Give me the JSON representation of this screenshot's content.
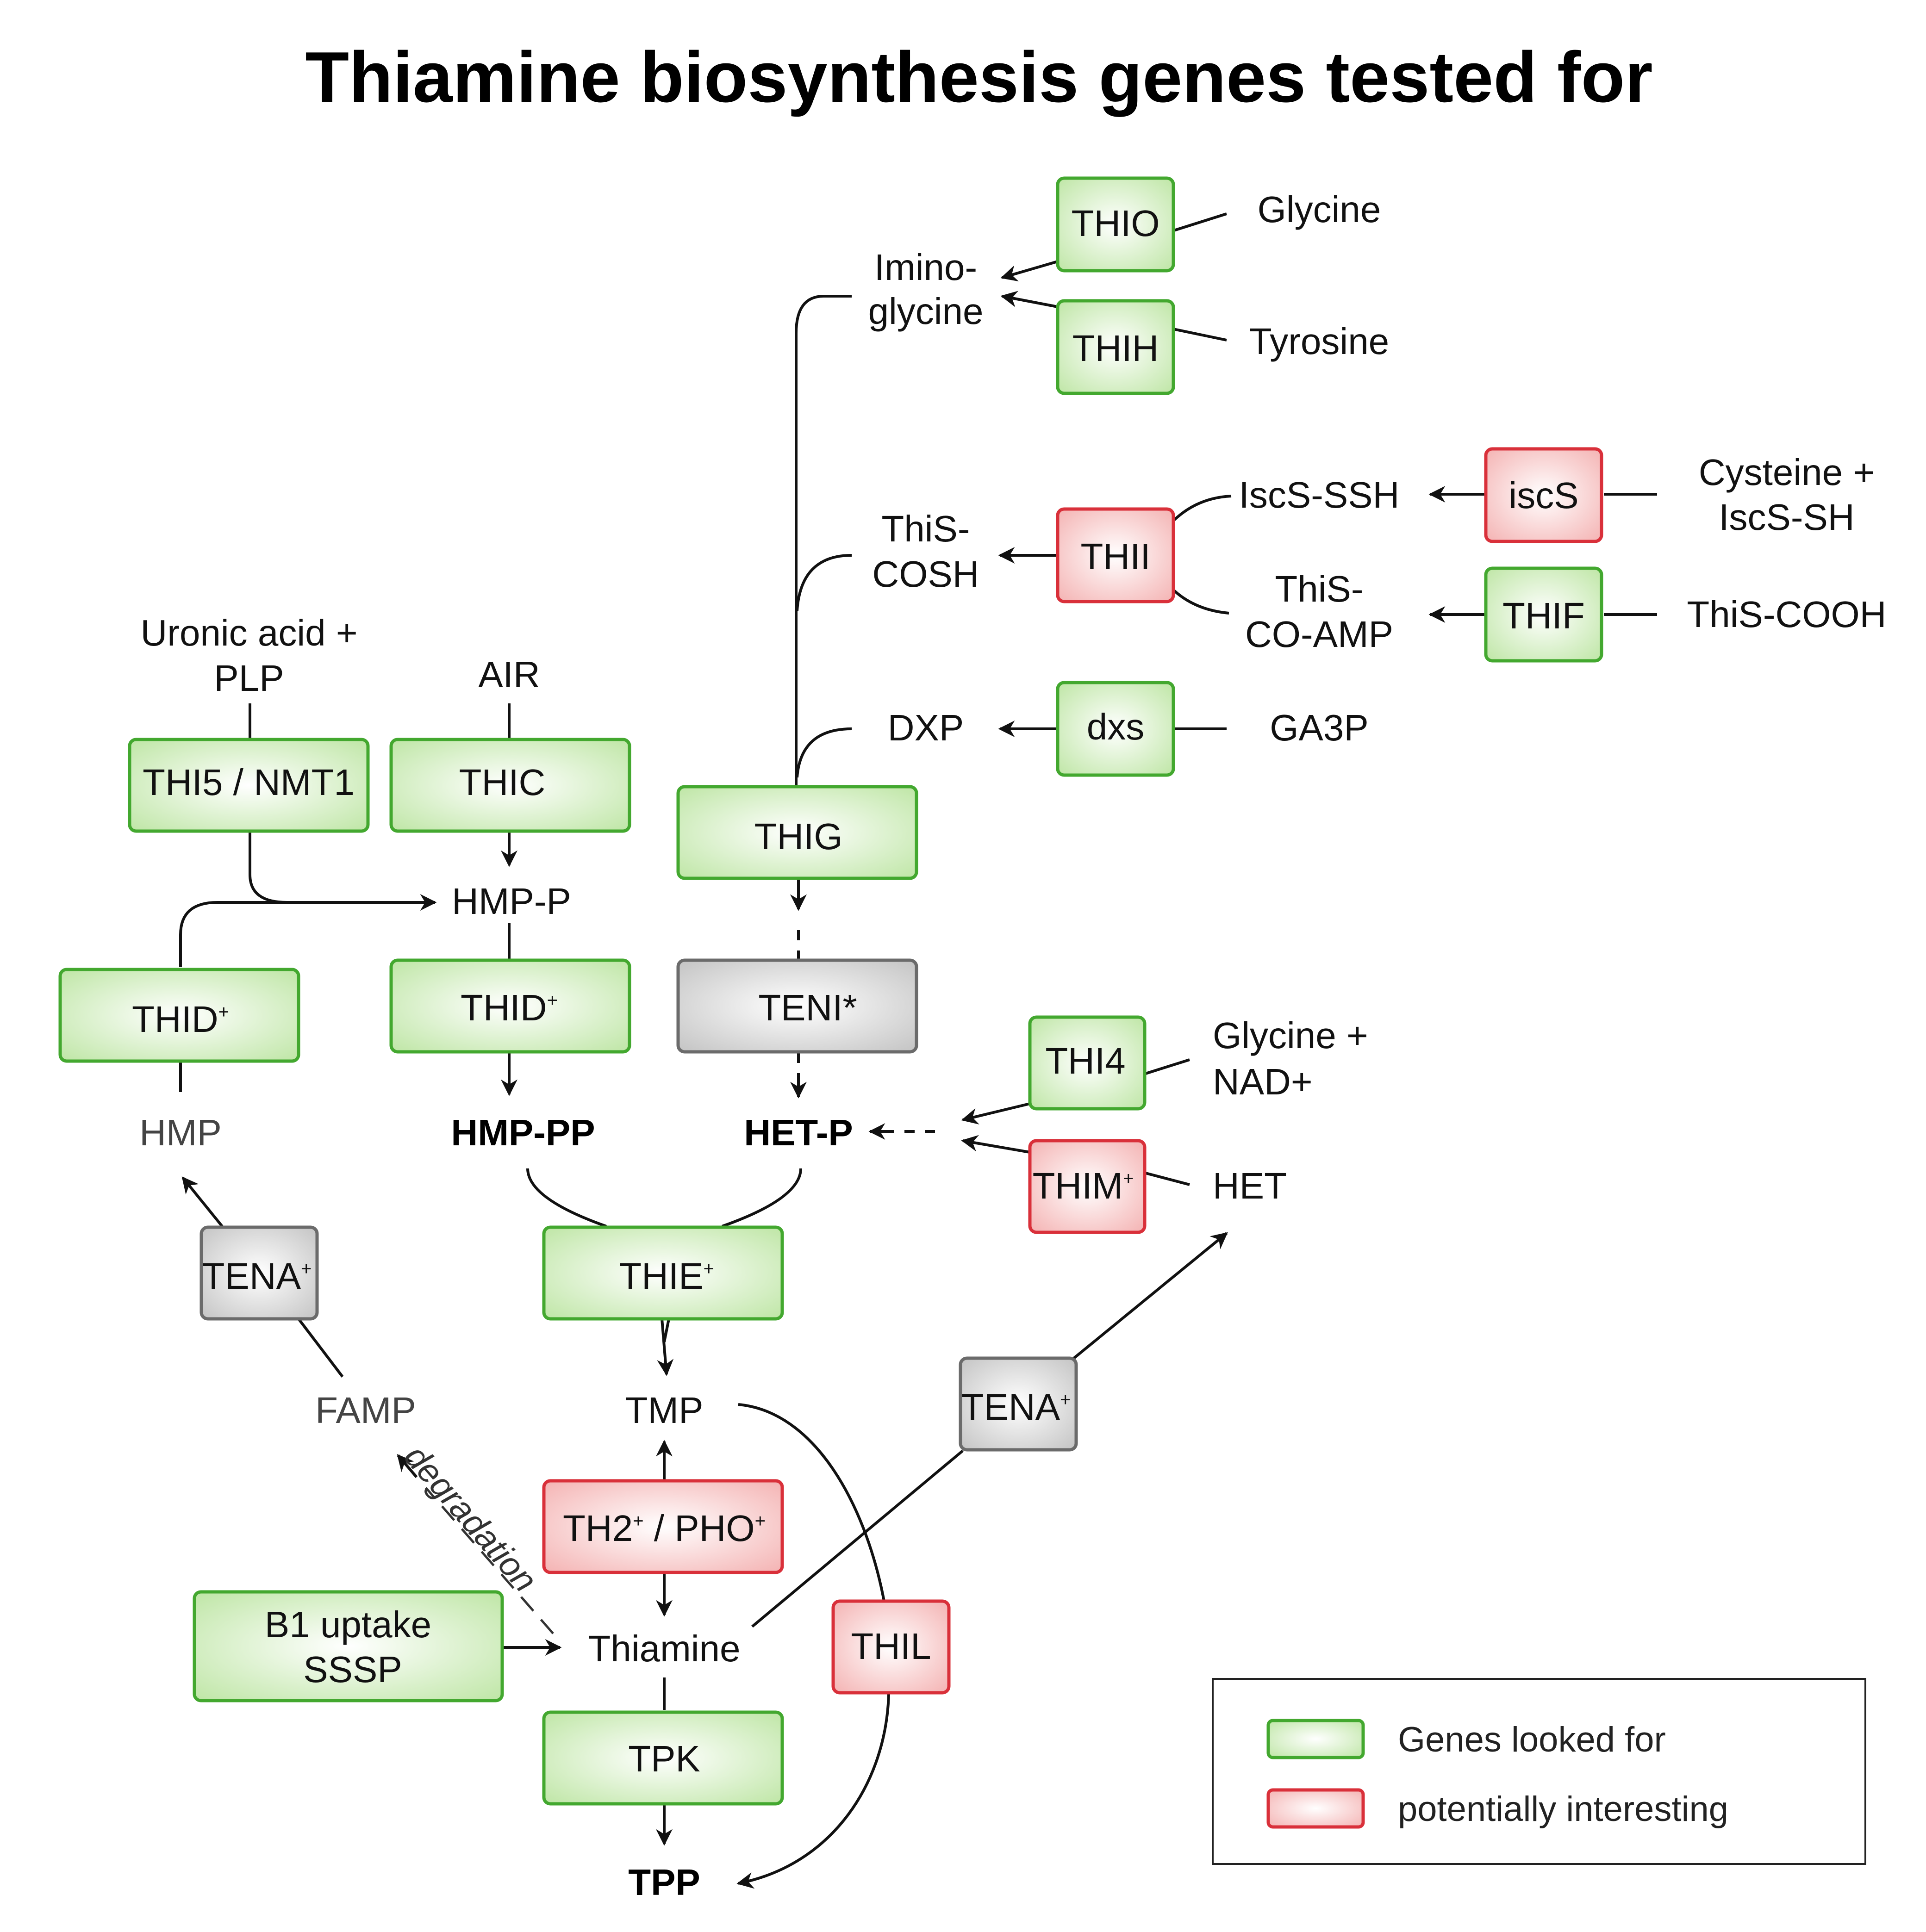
{
  "title": "Thiamine biosynthesis genes tested for",
  "colors": {
    "green_fill": "#d7f0c6",
    "green_stroke": "#43a82f",
    "red_fill": "#f8cfcf",
    "red_stroke": "#d9303a",
    "grey_fill": "#d9d9d9",
    "grey_stroke": "#6b6b6b"
  },
  "genes": {
    "thio": "THIO",
    "thih": "THIH",
    "thii": "THII",
    "iscs": "iscS",
    "thif": "THIF",
    "dxs": "dxs",
    "thi5": "THI5 / NMT1",
    "thic": "THIC",
    "thig": "THIG",
    "thid_left": "THID",
    "thid_mid": "THID",
    "teni": "TENI*",
    "thi4": "THI4",
    "thim": "THIM",
    "tena_left": "TENA",
    "thie": "THIE",
    "tena_right": "TENA",
    "th2_pho": "TH2  / PHO",
    "th2_part": "TH2",
    "pho_part": "PHO",
    "b1_uptake_line1": "B1 uptake",
    "b1_uptake_line2": "SSSP",
    "thil": "THIL",
    "tpk": "TPK",
    "superscript": "+"
  },
  "metabolites": {
    "glycine": "Glycine",
    "tyrosine": "Tyrosine",
    "iminoglycine_line1": "Imino-",
    "iminoglycine_line2": "glycine",
    "iscs_ssh": "IscS-SSH",
    "cysteine_line1": "Cysteine +",
    "cysteine_line2": "IscS-SH",
    "this_cosh_line1": "ThiS-",
    "this_cosh_line2": "COSH",
    "this_coamp_line1": "ThiS-",
    "this_coamp_line2": "CO-AMP",
    "this_cooh": "ThiS-COOH",
    "dxp": "DXP",
    "ga3p": "GA3P",
    "uronic_line1": "Uronic acid +",
    "uronic_line2": "PLP",
    "air": "AIR",
    "hmp_p": "HMP-P",
    "hmp": "HMP",
    "hmp_pp": "HMP-PP",
    "het_p": "HET-P",
    "glycine_nad_line1": "Glycine +",
    "glycine_nad_line2": "NAD+",
    "het": "HET",
    "tmp": "TMP",
    "famp": "FAMP",
    "thiamine": "Thiamine",
    "tpp": "TPP"
  },
  "annotations": {
    "degradation": "degradation"
  },
  "legend": {
    "green_label": "Genes looked for",
    "red_label": "potentially interesting"
  }
}
